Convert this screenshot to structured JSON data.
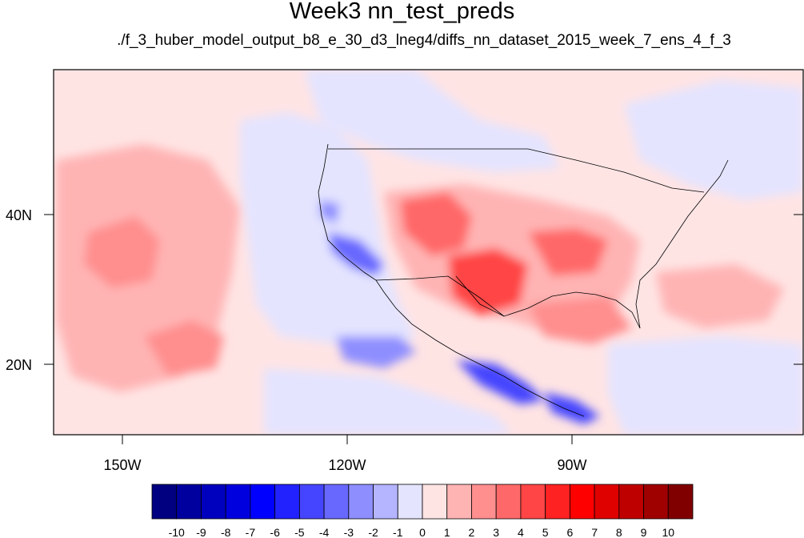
{
  "header": {
    "title": "Week3 nn_test_preds",
    "subtitle": "./f_3_huber_model_output_b8_e_30_d3_lneg4/diffs_nn_dataset_2015_week_7_ens_4_f_3"
  },
  "axes": {
    "lon_labels": [
      "150W",
      "120W",
      "90W"
    ],
    "lat_labels": [
      "40N",
      "20N"
    ]
  },
  "colorbar": {
    "labels": [
      "-10",
      "-9",
      "-8",
      "-7",
      "-6",
      "-5",
      "-4",
      "-3",
      "-2",
      "-1",
      "0",
      "1",
      "2",
      "3",
      "4",
      "5",
      "6",
      "7",
      "8",
      "9",
      "10"
    ],
    "colors": [
      "#000080",
      "#00009f",
      "#0000bf",
      "#0000df",
      "#0000ff",
      "#2222ff",
      "#4545ff",
      "#6868ff",
      "#8e8eff",
      "#b4b4ff",
      "#e4e4ff",
      "#ffe4e4",
      "#ffb4b4",
      "#ff8e8e",
      "#ff6868",
      "#ff4545",
      "#ff2222",
      "#ff0000",
      "#df0000",
      "#bf0000",
      "#9f0000",
      "#800000"
    ]
  }
}
